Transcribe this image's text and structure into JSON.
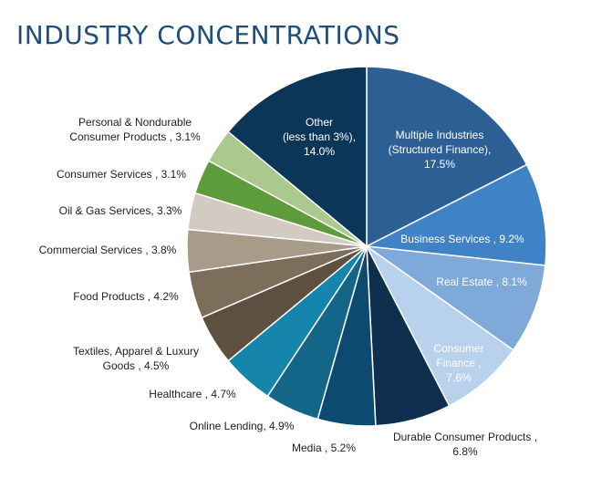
{
  "title": "INDUSTRY CONCENTRATIONS",
  "chart_data": {
    "type": "pie",
    "start": "12 o'clock",
    "direction": "clockwise",
    "slices": [
      {
        "lines": [
          "Multiple Industries",
          "(Structured Finance),",
          "17.5%"
        ],
        "value": 17.5,
        "color": "#2e5f94",
        "text_color": "#ffffff",
        "label_position": "inside"
      },
      {
        "lines": [
          "Business Services , 9.2%"
        ],
        "value": 9.2,
        "color": "#3f82c6",
        "text_color": "#ffffff",
        "label_position": "inside"
      },
      {
        "lines": [
          "Real Estate , 8.1%"
        ],
        "value": 8.1,
        "color": "#7fa9d9",
        "text_color": "#ffffff",
        "label_position": "inside"
      },
      {
        "lines": [
          "Consumer",
          "Finance ,",
          "7.6%"
        ],
        "value": 7.6,
        "color": "#b8d1ec",
        "text_color": "#ffffff",
        "label_position": "inside"
      },
      {
        "lines": [
          "Durable Consumer Products ,",
          "6.8%"
        ],
        "value": 6.8,
        "color": "#0e2f4e",
        "text_color": "#222222",
        "label_position": "outside"
      },
      {
        "lines": [
          "Media , 5.2%"
        ],
        "value": 5.2,
        "color": "#0c4a72",
        "text_color": "#222222",
        "label_position": "outside"
      },
      {
        "lines": [
          "Online Lending, 4.9%"
        ],
        "value": 4.9,
        "color": "#136688",
        "text_color": "#222222",
        "label_position": "outside"
      },
      {
        "lines": [
          "Healthcare , 4.7%"
        ],
        "value": 4.7,
        "color": "#1585ab",
        "text_color": "#222222",
        "label_position": "outside"
      },
      {
        "lines": [
          "Textiles, Apparel & Luxury",
          "Goods , 4.5%"
        ],
        "value": 4.5,
        "color": "#5e5040",
        "text_color": "#222222",
        "label_position": "outside"
      },
      {
        "lines": [
          "Food Products , 4.2%"
        ],
        "value": 4.2,
        "color": "#7d6d5b",
        "text_color": "#222222",
        "label_position": "outside"
      },
      {
        "lines": [
          "Commercial Services , 3.8%"
        ],
        "value": 3.8,
        "color": "#a89b8a",
        "text_color": "#222222",
        "label_position": "outside"
      },
      {
        "lines": [
          "Oil & Gas Services, 3.3%"
        ],
        "value": 3.3,
        "color": "#d3cbc1",
        "text_color": "#222222",
        "label_position": "outside"
      },
      {
        "lines": [
          "Consumer Services , 3.1%"
        ],
        "value": 3.1,
        "color": "#5e9b3b",
        "text_color": "#222222",
        "label_position": "outside"
      },
      {
        "lines": [
          "Personal & Nondurable",
          "Consumer Products , 3.1%"
        ],
        "value": 3.1,
        "color": "#a9c98d",
        "text_color": "#222222",
        "label_position": "outside"
      },
      {
        "lines": [
          "Other",
          "(less than 3%),",
          "14.0%"
        ],
        "value": 14.0,
        "color": "#0b3658",
        "text_color": "#ffffff",
        "label_position": "inside"
      }
    ]
  }
}
